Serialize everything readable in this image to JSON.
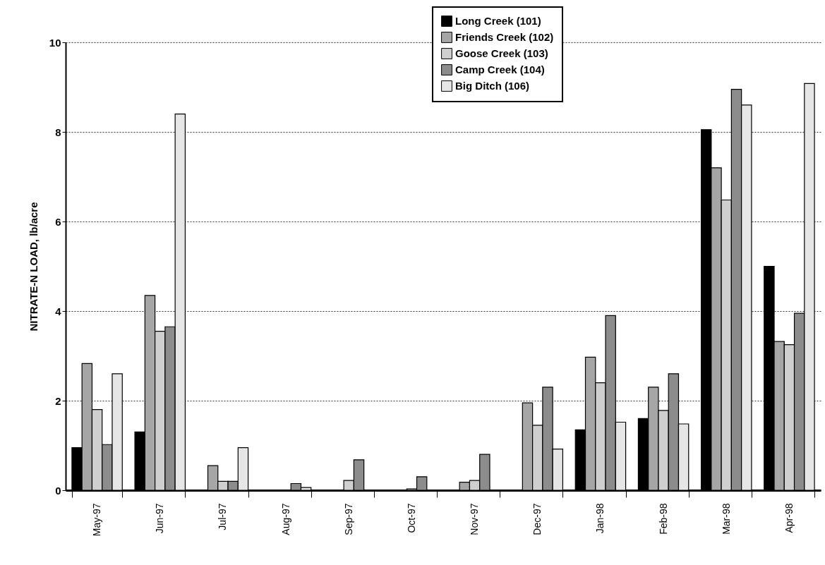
{
  "chart_data": {
    "type": "bar",
    "ylabel": "NITRATE-N LOAD, lb/acre",
    "categories": [
      "May-97",
      "Jun-97",
      "Jul-97",
      "Aug-97",
      "Sep-97",
      "Oct-97",
      "Nov-97",
      "Dec-97",
      "Jan-98",
      "Feb-98",
      "Mar-98",
      "Apr-98"
    ],
    "series": [
      {
        "name": "Long Creek (101)",
        "color": "#000000",
        "values": [
          0.95,
          1.3,
          null,
          null,
          null,
          null,
          null,
          null,
          1.35,
          1.6,
          8.05,
          5.0
        ]
      },
      {
        "name": "Friends Creek (102)",
        "color": "#a6a6a6",
        "values": [
          2.83,
          4.35,
          0.55,
          null,
          null,
          null,
          0.18,
          1.95,
          2.97,
          2.3,
          7.2,
          3.32
        ]
      },
      {
        "name": "Goose Creek (103)",
        "color": "#cfcfcf",
        "values": [
          1.8,
          3.55,
          0.2,
          null,
          0.22,
          0.03,
          0.22,
          1.45,
          2.4,
          1.78,
          6.48,
          3.25
        ]
      },
      {
        "name": "Camp Creek (104)",
        "color": "#8c8c8c",
        "values": [
          1.02,
          3.65,
          0.2,
          0.15,
          0.68,
          0.3,
          0.8,
          2.3,
          3.9,
          2.6,
          8.95,
          3.95
        ]
      },
      {
        "name": "Big Ditch (106)",
        "color": "#e6e6e6",
        "values": [
          2.6,
          8.4,
          0.95,
          0.06,
          null,
          null,
          null,
          0.92,
          1.52,
          1.48,
          8.6,
          9.08
        ]
      }
    ],
    "ylim": [
      0,
      10
    ],
    "yticks": [
      0,
      2,
      4,
      6,
      8,
      10
    ],
    "grid": "y",
    "legend": "top right"
  }
}
